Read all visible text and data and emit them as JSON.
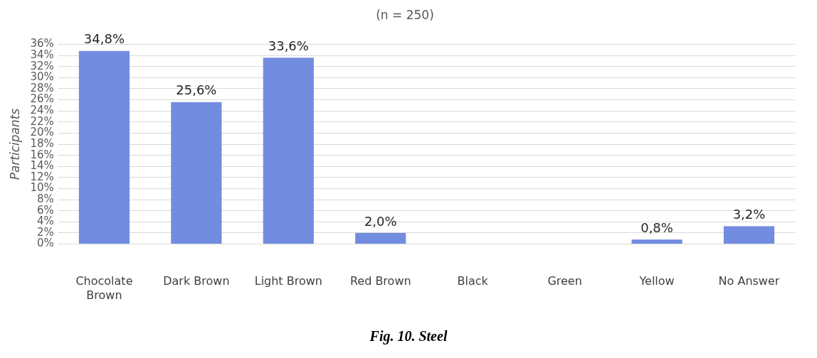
{
  "chart_data": {
    "type": "bar",
    "title": "(n = 250)",
    "ylabel": "Participants",
    "categories": [
      "Chocolate Brown",
      "Dark Brown",
      "Light Brown",
      "Red Brown",
      "Black",
      "Green",
      "Yellow",
      "No Answer"
    ],
    "values": [
      34.8,
      25.6,
      33.6,
      2.0,
      0,
      0,
      0.8,
      3.2
    ],
    "value_labels": [
      "34,8%",
      "25,6%",
      "33,6%",
      "2,0%",
      null,
      null,
      "0,8%",
      "3,2%"
    ],
    "color": "#728ce0",
    "ylim": [
      0,
      36
    ],
    "yticks": [
      {
        "value": 0,
        "label": "0%"
      },
      {
        "value": 2,
        "label": "2%"
      },
      {
        "value": 4,
        "label": "4%"
      },
      {
        "value": 6,
        "label": "6%"
      },
      {
        "value": 8,
        "label": "8%"
      },
      {
        "value": 10,
        "label": "10%"
      },
      {
        "value": 12,
        "label": "12%"
      },
      {
        "value": 14,
        "label": "14%"
      },
      {
        "value": 16,
        "label": "16%"
      },
      {
        "value": 18,
        "label": "18%"
      },
      {
        "value": 20,
        "label": "20%"
      },
      {
        "value": 22,
        "label": "22%"
      },
      {
        "value": 24,
        "label": "24%"
      },
      {
        "value": 26,
        "label": "26%"
      },
      {
        "value": 28,
        "label": "28%"
      },
      {
        "value": 30,
        "label": "30%"
      },
      {
        "value": 32,
        "label": "32%"
      },
      {
        "value": 34,
        "label": "34%"
      },
      {
        "value": 36,
        "label": "36%"
      }
    ],
    "grid": "y",
    "annotations": [
      "Fig. 10. Steel"
    ]
  }
}
